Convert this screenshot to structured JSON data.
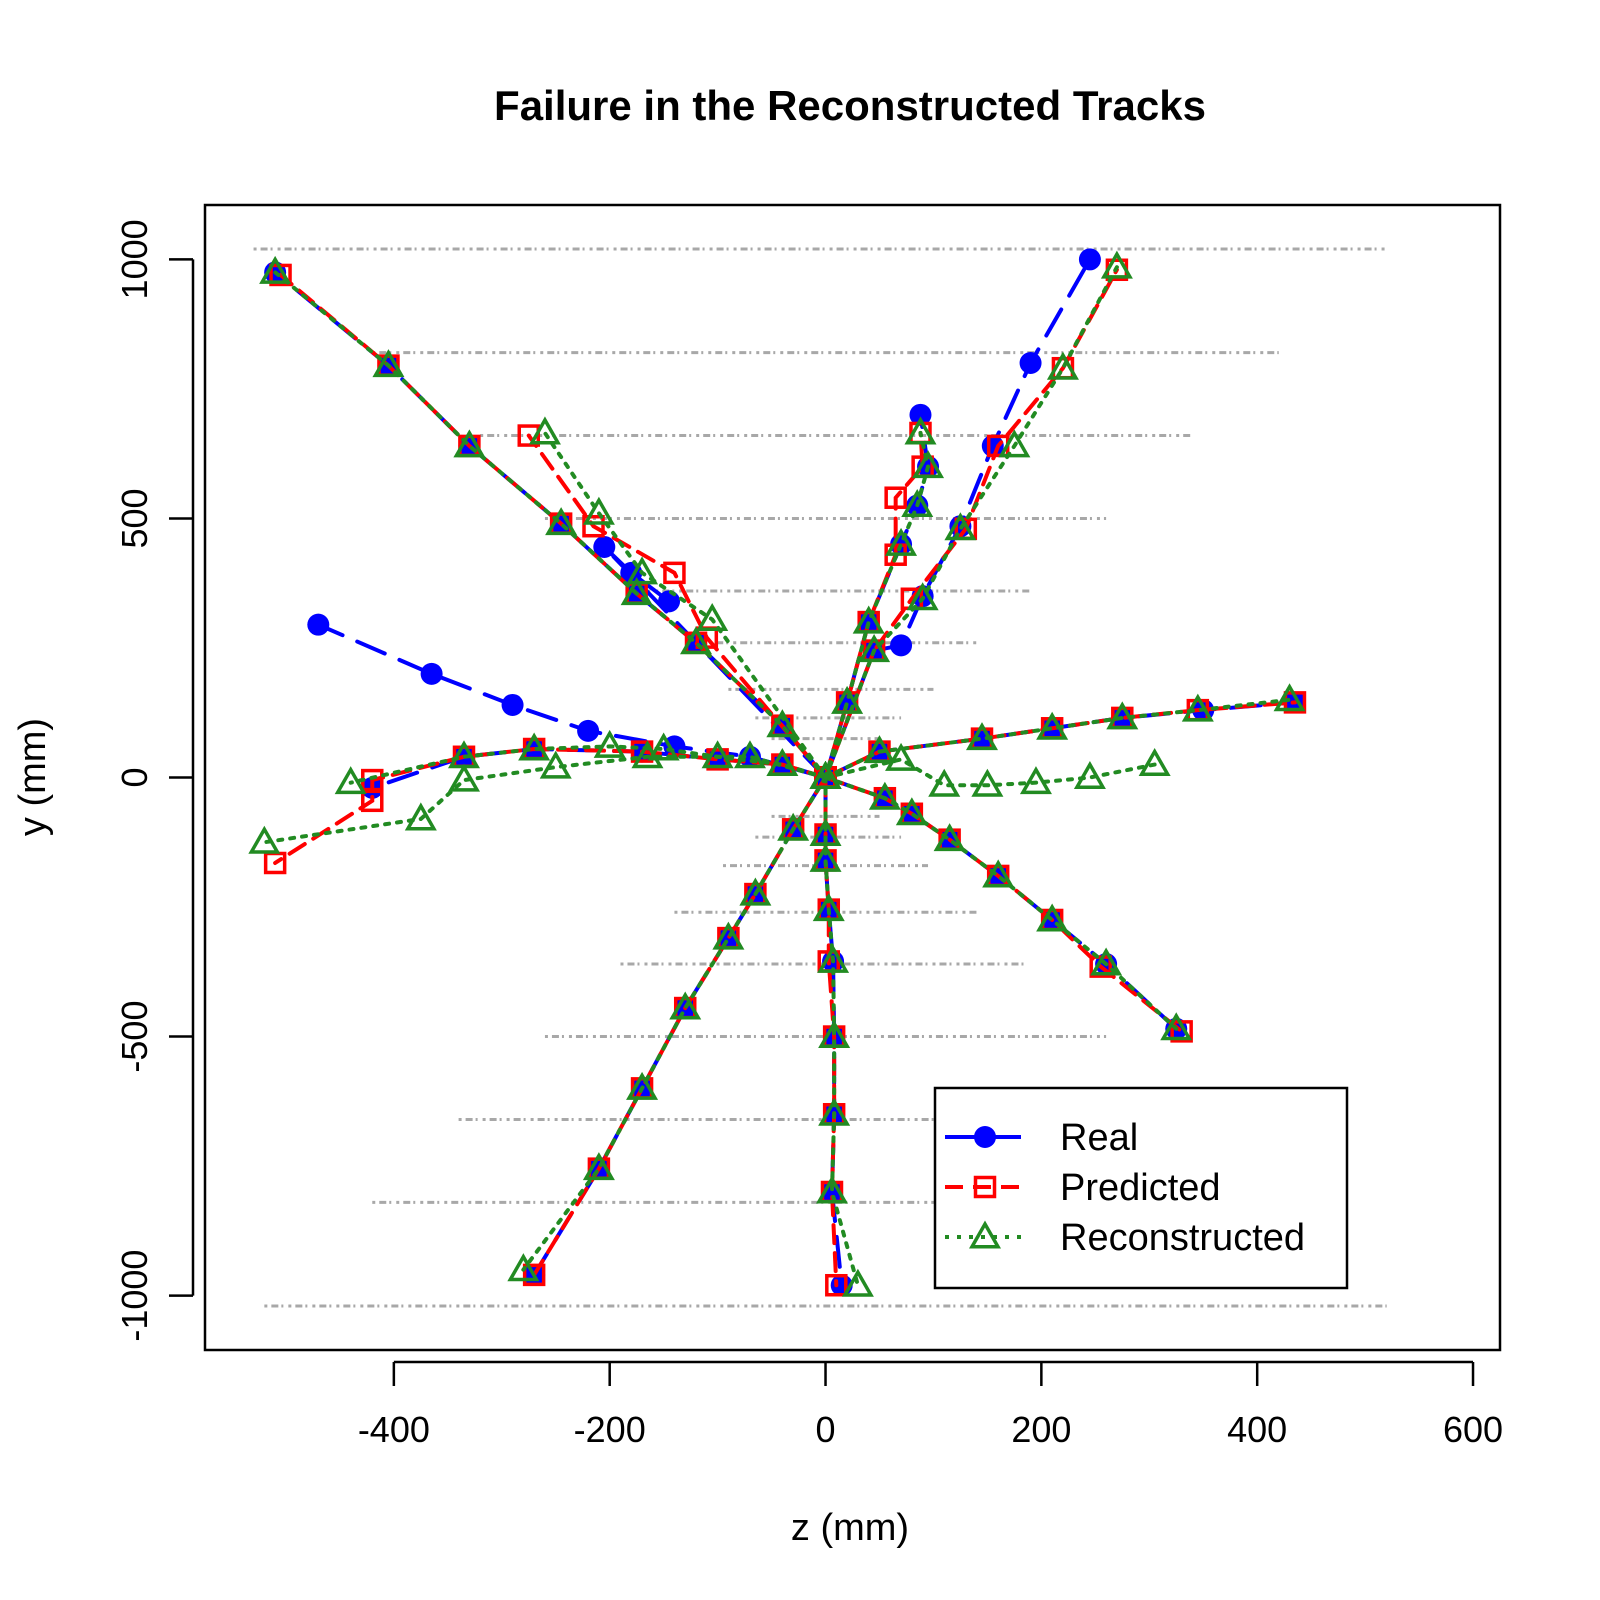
{
  "chart_data": {
    "type": "line",
    "title": "Failure in the Reconstructed Tracks",
    "xlabel": "z (mm)",
    "ylabel": "y (mm)",
    "xlim": [
      -575,
      625
    ],
    "ylim": [
      -1105,
      1105
    ],
    "x_ticks": [
      -400,
      -200,
      0,
      200,
      400,
      600
    ],
    "x_tick_labels": [
      "-400",
      "-200",
      "0",
      "200",
      "400",
      "600"
    ],
    "y_ticks": [
      -1000,
      -500,
      0,
      500,
      1000
    ],
    "y_tick_labels": [
      "-1000",
      "-500",
      "0",
      "500",
      "1000"
    ],
    "grid": false,
    "legend_position": "bottom-right",
    "detector_layers": {
      "color": "#a8a8a8",
      "description_free": true,
      "layers": [
        {
          "y": 1020,
          "z_min": -530,
          "z_max": 520
        },
        {
          "y": 820,
          "z_min": -420,
          "z_max": 420
        },
        {
          "y": 660,
          "z_min": -320,
          "z_max": 340
        },
        {
          "y": 500,
          "z_min": -260,
          "z_max": 260
        },
        {
          "y": 360,
          "z_min": -180,
          "z_max": 190
        },
        {
          "y": 260,
          "z_min": -130,
          "z_max": 140
        },
        {
          "y": 170,
          "z_min": -90,
          "z_max": 100
        },
        {
          "y": 115,
          "z_min": -65,
          "z_max": 70
        },
        {
          "y": 75,
          "z_min": -50,
          "z_max": 50
        },
        {
          "y": -75,
          "z_min": -50,
          "z_max": 50
        },
        {
          "y": -115,
          "z_min": -65,
          "z_max": 70
        },
        {
          "y": -170,
          "z_min": -95,
          "z_max": 95
        },
        {
          "y": -260,
          "z_min": -140,
          "z_max": 140
        },
        {
          "y": -360,
          "z_min": -190,
          "z_max": 185
        },
        {
          "y": -500,
          "z_min": -260,
          "z_max": 260
        },
        {
          "y": -660,
          "z_min": -340,
          "z_max": 320
        },
        {
          "y": -820,
          "z_min": -420,
          "z_max": 420
        },
        {
          "y": -1020,
          "z_min": -520,
          "z_max": 520
        }
      ]
    },
    "series": [
      {
        "name": "Real",
        "color": "#0000ff",
        "marker": "filled-circle",
        "dash": "long-dash",
        "tracks": [
          [
            [
              0,
              0
            ],
            [
              -40,
              100
            ],
            [
              -120,
              260
            ],
            [
              -175,
              355
            ],
            [
              -245,
              490
            ],
            [
              -330,
              640
            ],
            [
              -405,
              795
            ],
            [
              -510,
              975
            ]
          ],
          [
            [
              0,
              0
            ],
            [
              -70,
              40
            ],
            [
              -140,
              60
            ],
            [
              -220,
              90
            ],
            [
              -290,
              140
            ],
            [
              -365,
              200
            ],
            [
              -470,
              295
            ]
          ],
          [
            [
              0,
              0
            ],
            [
              -40,
              25
            ],
            [
              -100,
              35
            ],
            [
              -170,
              50
            ],
            [
              -270,
              55
            ],
            [
              -335,
              40
            ],
            [
              -420,
              -20
            ]
          ],
          [
            [
              0,
              0
            ],
            [
              50,
              50
            ],
            [
              145,
              75
            ],
            [
              210,
              95
            ],
            [
              275,
              115
            ],
            [
              350,
              130
            ],
            [
              435,
              145
            ]
          ],
          [
            [
              0,
              0
            ],
            [
              20,
              145
            ],
            [
              40,
              300
            ],
            [
              70,
              450
            ],
            [
              85,
              525
            ],
            [
              95,
              600
            ],
            [
              88,
              700
            ]
          ],
          [
            [
              0,
              0
            ],
            [
              45,
              245
            ],
            [
              70,
              255
            ],
            [
              90,
              350
            ],
            [
              125,
              485
            ],
            [
              155,
              640
            ],
            [
              190,
              800
            ],
            [
              245,
              1000
            ]
          ],
          [
            [
              0,
              0
            ],
            [
              55,
              -40
            ],
            [
              80,
              -70
            ],
            [
              115,
              -120
            ],
            [
              160,
              -190
            ],
            [
              210,
              -275
            ],
            [
              260,
              -360
            ],
            [
              325,
              -485
            ]
          ],
          [
            [
              0,
              0
            ],
            [
              -30,
              -100
            ],
            [
              -65,
              -225
            ],
            [
              -90,
              -310
            ],
            [
              -130,
              -445
            ],
            [
              -170,
              -600
            ],
            [
              -210,
              -755
            ],
            [
              -270,
              -960
            ]
          ],
          [
            [
              0,
              0
            ],
            [
              0,
              -110
            ],
            [
              0,
              -160
            ],
            [
              3,
              -255
            ],
            [
              7,
              -355
            ],
            [
              8,
              -500
            ],
            [
              8,
              -650
            ],
            [
              6,
              -800
            ],
            [
              15,
              -980
            ]
          ],
          [
            [
              0,
              0
            ],
            [
              -205,
              445
            ],
            [
              -180,
              395
            ],
            [
              -145,
              340
            ]
          ]
        ]
      },
      {
        "name": "Predicted",
        "color": "#ff0000",
        "marker": "open-square",
        "dash": "dash",
        "tracks": [
          [
            [
              0,
              0
            ],
            [
              -40,
              100
            ],
            [
              -120,
              260
            ],
            [
              -175,
              355
            ],
            [
              -245,
              490
            ],
            [
              -330,
              640
            ],
            [
              -405,
              795
            ],
            [
              -505,
              970
            ]
          ],
          [
            [
              0,
              0
            ],
            [
              -40,
              25
            ],
            [
              -100,
              35
            ],
            [
              -170,
              50
            ],
            [
              -270,
              55
            ],
            [
              -335,
              40
            ],
            [
              -420,
              -5
            ],
            [
              -420,
              -45
            ],
            [
              -510,
              -165
            ]
          ],
          [
            [
              0,
              0
            ],
            [
              50,
              50
            ],
            [
              145,
              75
            ],
            [
              210,
              95
            ],
            [
              275,
              115
            ],
            [
              345,
              130
            ],
            [
              435,
              145
            ]
          ],
          [
            [
              0,
              0
            ],
            [
              20,
              145
            ],
            [
              40,
              300
            ],
            [
              65,
              430
            ],
            [
              65,
              540
            ],
            [
              90,
              600
            ],
            [
              88,
              665
            ]
          ],
          [
            [
              0,
              0
            ],
            [
              45,
              245
            ],
            [
              80,
              345
            ],
            [
              130,
              480
            ],
            [
              160,
              640
            ],
            [
              220,
              790
            ],
            [
              270,
              980
            ]
          ],
          [
            [
              0,
              0
            ],
            [
              55,
              -40
            ],
            [
              80,
              -70
            ],
            [
              115,
              -120
            ],
            [
              160,
              -190
            ],
            [
              210,
              -275
            ],
            [
              255,
              -365
            ],
            [
              330,
              -490
            ]
          ],
          [
            [
              0,
              0
            ],
            [
              -30,
              -100
            ],
            [
              -65,
              -225
            ],
            [
              -90,
              -310
            ],
            [
              -130,
              -445
            ],
            [
              -170,
              -600
            ],
            [
              -210,
              -755
            ],
            [
              -270,
              -960
            ]
          ],
          [
            [
              0,
              0
            ],
            [
              0,
              -110
            ],
            [
              0,
              -160
            ],
            [
              3,
              -255
            ],
            [
              3,
              -355
            ],
            [
              8,
              -500
            ],
            [
              8,
              -650
            ],
            [
              6,
              -800
            ],
            [
              10,
              -980
            ]
          ],
          [
            [
              0,
              0
            ],
            [
              -110,
              270
            ],
            [
              -140,
              395
            ],
            [
              -215,
              485
            ],
            [
              -275,
              660
            ]
          ]
        ]
      },
      {
        "name": "Reconstructed",
        "color": "#228b22",
        "marker": "open-triangle",
        "dash": "dot",
        "tracks": [
          [
            [
              0,
              0
            ],
            [
              -40,
              100
            ],
            [
              -120,
              260
            ],
            [
              -175,
              355
            ],
            [
              -245,
              490
            ],
            [
              -330,
              640
            ],
            [
              -405,
              795
            ],
            [
              -510,
              975
            ]
          ],
          [
            [
              0,
              0
            ],
            [
              -40,
              25
            ],
            [
              -100,
              40
            ],
            [
              -150,
              55
            ],
            [
              -200,
              60
            ],
            [
              -270,
              55
            ],
            [
              -335,
              40
            ],
            [
              -440,
              -10
            ]
          ],
          [
            [
              0,
              0
            ],
            [
              -70,
              40
            ],
            [
              -165,
              40
            ],
            [
              -250,
              20
            ],
            [
              -335,
              -5
            ],
            [
              -375,
              -80
            ],
            [
              -520,
              -125
            ]
          ],
          [
            [
              0,
              0
            ],
            [
              50,
              50
            ],
            [
              145,
              75
            ],
            [
              210,
              95
            ],
            [
              275,
              115
            ],
            [
              345,
              130
            ],
            [
              430,
              150
            ]
          ],
          [
            [
              0,
              0
            ],
            [
              20,
              145
            ],
            [
              40,
              300
            ],
            [
              70,
              450
            ],
            [
              85,
              525
            ],
            [
              95,
              600
            ],
            [
              88,
              665
            ]
          ],
          [
            [
              0,
              0
            ],
            [
              45,
              245
            ],
            [
              90,
              345
            ],
            [
              125,
              480
            ],
            [
              175,
              640
            ],
            [
              220,
              790
            ],
            [
              270,
              985
            ]
          ],
          [
            [
              0,
              0
            ],
            [
              55,
              -40
            ],
            [
              80,
              -70
            ],
            [
              115,
              -120
            ],
            [
              160,
              -190
            ],
            [
              210,
              -275
            ],
            [
              260,
              -360
            ],
            [
              325,
              -485
            ]
          ],
          [
            [
              0,
              0
            ],
            [
              -30,
              -100
            ],
            [
              -65,
              -225
            ],
            [
              -90,
              -310
            ],
            [
              -130,
              -445
            ],
            [
              -170,
              -600
            ],
            [
              -210,
              -755
            ],
            [
              -280,
              -950
            ]
          ],
          [
            [
              0,
              0
            ],
            [
              0,
              -110
            ],
            [
              0,
              -160
            ],
            [
              3,
              -255
            ],
            [
              7,
              -355
            ],
            [
              8,
              -500
            ],
            [
              8,
              -650
            ],
            [
              6,
              -800
            ],
            [
              30,
              -980
            ]
          ],
          [
            [
              0,
              0
            ],
            [
              -105,
              305
            ],
            [
              -170,
              395
            ],
            [
              -210,
              510
            ],
            [
              -260,
              665
            ]
          ],
          [
            [
              0,
              0
            ],
            [
              70,
              35
            ],
            [
              110,
              -15
            ],
            [
              150,
              -15
            ],
            [
              195,
              -10
            ],
            [
              245,
              0
            ],
            [
              305,
              25
            ]
          ]
        ]
      }
    ],
    "legend": {
      "entries": [
        "Real",
        "Predicted",
        "Reconstructed"
      ]
    }
  }
}
